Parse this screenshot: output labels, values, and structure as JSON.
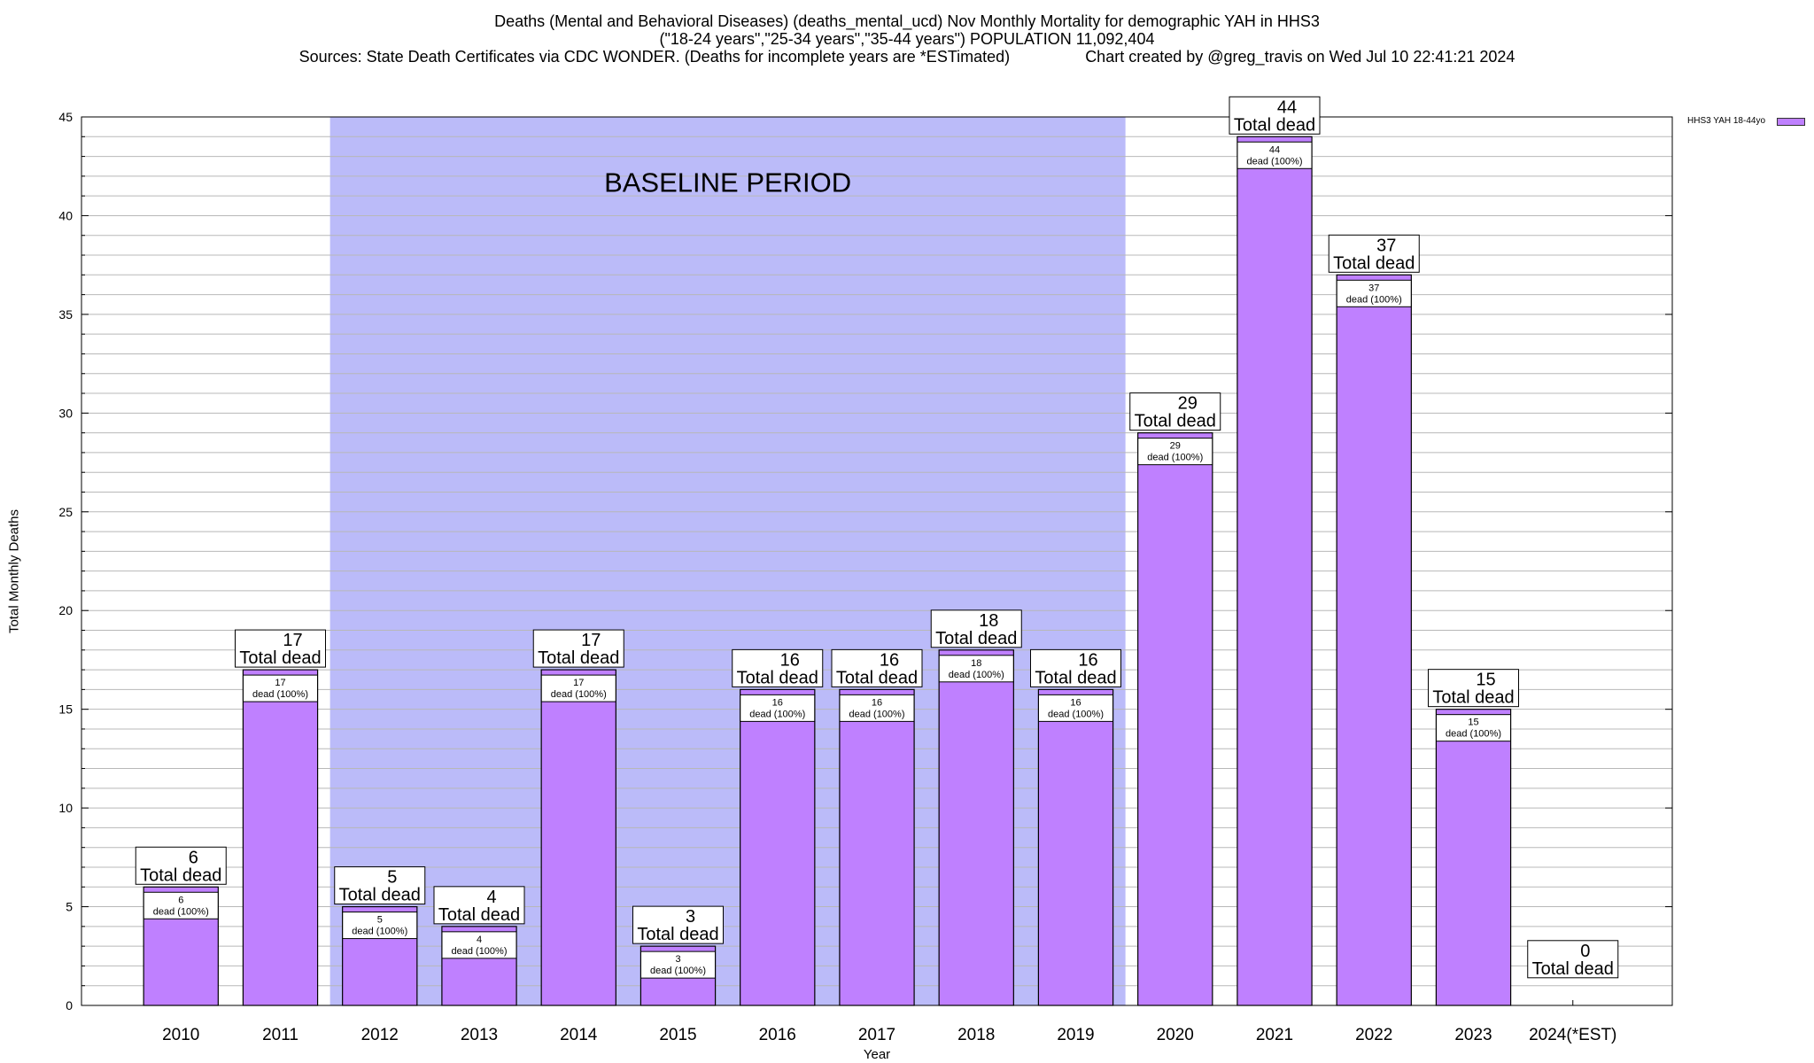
{
  "chart_data": {
    "type": "bar",
    "title": "Deaths (Mental and Behavioral Diseases) (deaths_mental_ucd) Nov Monthly Mortality for demographic YAH in HHS3",
    "subtitle": "(\"18-24 years\",\"25-34 years\",\"35-44 years\") POPULATION 11,092,404",
    "source_line": "Sources: State Death Certificates via CDC WONDER. (Deaths for incomplete years are *ESTimated)                 Chart created by @greg_travis on Wed Jul 10 22:41:21 2024",
    "xlabel": "Year",
    "ylabel": "Total Monthly Deaths",
    "ylim": [
      0,
      45
    ],
    "yticks": [
      0,
      5,
      10,
      15,
      20,
      25,
      30,
      35,
      40,
      45
    ],
    "grid": true,
    "legend_position": "top-right",
    "categories": [
      "2010",
      "2011",
      "2012",
      "2013",
      "2014",
      "2015",
      "2016",
      "2017",
      "2018",
      "2019",
      "2020",
      "2021",
      "2022",
      "2023",
      "2024(*EST)"
    ],
    "series": [
      {
        "name": "HHS3 YAH 18-44yo",
        "color": "#bf80ff",
        "values": [
          6,
          17,
          5,
          4,
          17,
          3,
          16,
          16,
          18,
          16,
          29,
          44,
          37,
          15,
          0
        ]
      }
    ],
    "top_label_suffix": "Total dead",
    "inner_label_text": "dead (100%)",
    "baseline_period": {
      "label": "BASELINE PERIOD",
      "start": "2012",
      "end": "2019",
      "color": "#bbbbf9"
    }
  }
}
